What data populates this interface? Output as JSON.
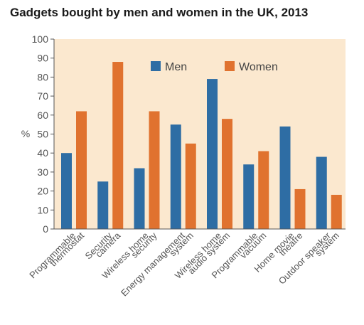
{
  "chart_data": {
    "type": "bar",
    "title": "Gadgets bought by men and women in the UK, 2013",
    "xlabel": "",
    "ylabel": "%",
    "ylim": [
      0,
      100
    ],
    "yticks": [
      0,
      10,
      20,
      30,
      40,
      50,
      60,
      70,
      80,
      90,
      100
    ],
    "grid": false,
    "legend_position": "top-center",
    "categories": [
      [
        "Programmable",
        "thermostat"
      ],
      [
        "Security",
        "camera"
      ],
      [
        "Wireless home",
        "security"
      ],
      [
        "Energy management",
        "system"
      ],
      [
        "Wireless home",
        "audio system"
      ],
      [
        "Programmable",
        "vacuum"
      ],
      [
        "Home movie",
        "theatre"
      ],
      [
        "Outdoor speaker",
        "system"
      ]
    ],
    "series": [
      {
        "name": "Men",
        "color": "#2e6da4",
        "values": [
          40,
          25,
          32,
          55,
          79,
          34,
          54,
          38
        ]
      },
      {
        "name": "Women",
        "color": "#e0722f",
        "values": [
          62,
          88,
          62,
          45,
          58,
          41,
          21,
          18
        ]
      }
    ],
    "plot_background": "#fbe8cf"
  }
}
